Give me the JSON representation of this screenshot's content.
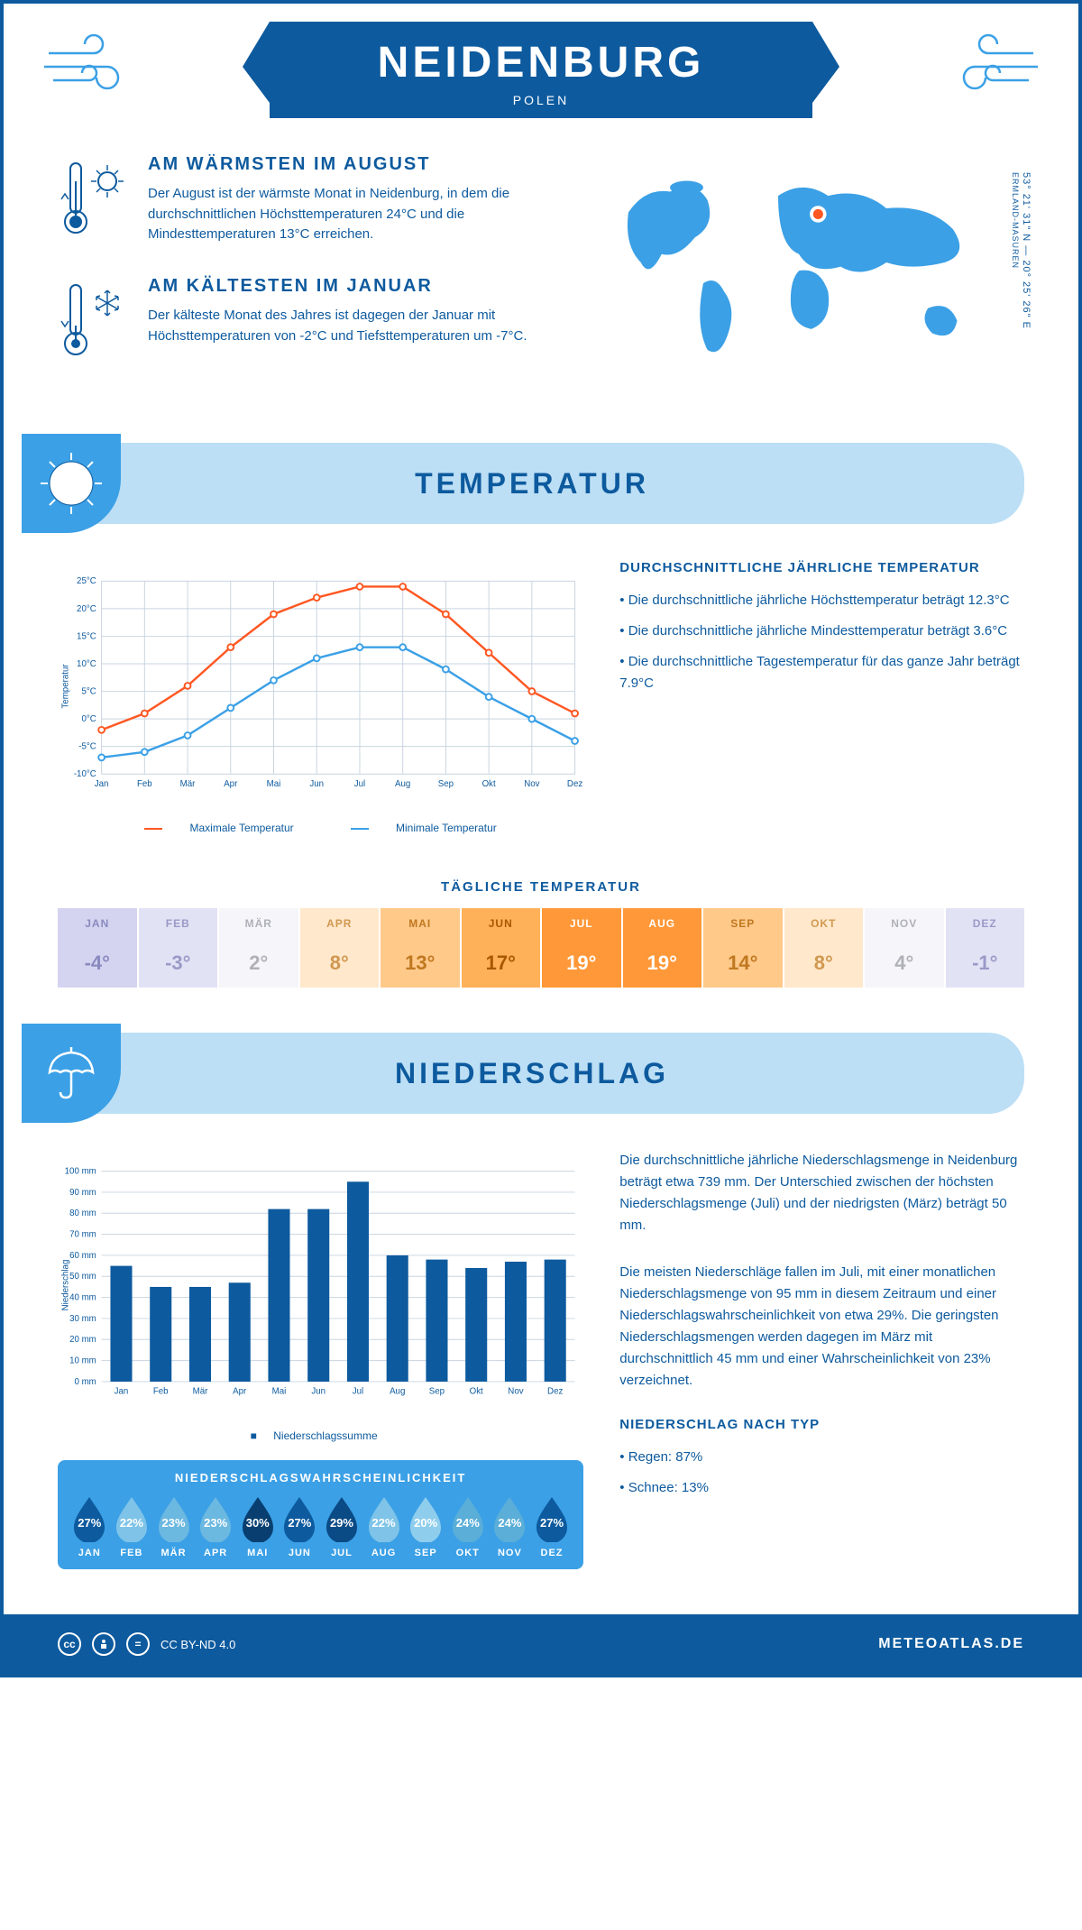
{
  "header": {
    "city": "NEIDENBURG",
    "country": "POLEN"
  },
  "coords_line": "53° 21' 31\" N — 20° 25' 26\" E",
  "region": "ERMLAND-MASUREN",
  "facts": {
    "warmest": {
      "title": "AM WÄRMSTEN IM AUGUST",
      "text": "Der August ist der wärmste Monat in Neidenburg, in dem die durchschnittlichen Höchsttemperaturen 24°C und die Mindesttemperaturen 13°C erreichen."
    },
    "coldest": {
      "title": "AM KÄLTESTEN IM JANUAR",
      "text": "Der kälteste Monat des Jahres ist dagegen der Januar mit Höchsttemperaturen von -2°C und Tiefsttemperaturen um -7°C."
    }
  },
  "temp_section": {
    "title": "TEMPERATUR",
    "chart": {
      "type": "line",
      "months": [
        "Jan",
        "Feb",
        "Mär",
        "Apr",
        "Mai",
        "Jun",
        "Jul",
        "Aug",
        "Sep",
        "Okt",
        "Nov",
        "Dez"
      ],
      "max_series": [
        -2,
        1,
        6,
        13,
        19,
        22,
        24,
        24,
        19,
        12,
        5,
        1
      ],
      "min_series": [
        -7,
        -6,
        -3,
        2,
        7,
        11,
        13,
        13,
        9,
        4,
        0,
        -4
      ],
      "max_color": "#ff5722",
      "min_color": "#3ba0e6",
      "grid_color": "#c8d4e0",
      "ylim": [
        -10,
        25
      ],
      "ytick_step": 5,
      "ylabel": "Temperatur",
      "legend_max": "Maximale Temperatur",
      "legend_min": "Minimale Temperatur"
    },
    "info": {
      "heading": "DURCHSCHNITTLICHE JÄHRLICHE TEMPERATUR",
      "bullet1": "• Die durchschnittliche jährliche Höchsttemperatur beträgt 12.3°C",
      "bullet2": "• Die durchschnittliche jährliche Mindesttemperatur beträgt 3.6°C",
      "bullet3": "• Die durchschnittliche Tagestemperatur für das ganze Jahr beträgt 7.9°C"
    },
    "daily": {
      "title": "TÄGLICHE TEMPERATUR",
      "months": [
        "JAN",
        "FEB",
        "MÄR",
        "APR",
        "MAI",
        "JUN",
        "JUL",
        "AUG",
        "SEP",
        "OKT",
        "NOV",
        "DEZ"
      ],
      "values": [
        "-4°",
        "-3°",
        "2°",
        "8°",
        "13°",
        "17°",
        "19°",
        "19°",
        "14°",
        "8°",
        "4°",
        "-1°"
      ],
      "colors": [
        "#d4d4f0",
        "#e2e2f5",
        "#f5f5fa",
        "#ffe8cc",
        "#ffc98a",
        "#ffb159",
        "#ff9838",
        "#ff9838",
        "#ffc98a",
        "#ffe8cc",
        "#f5f5fa",
        "#e2e2f5"
      ],
      "text_colors": [
        "#8a8ac0",
        "#9a9ac8",
        "#b0b0b8",
        "#d09850",
        "#c07820",
        "#a85800",
        "#fff",
        "#fff",
        "#c07820",
        "#d09850",
        "#b0b0b8",
        "#9a9ac8"
      ]
    }
  },
  "precip_section": {
    "title": "NIEDERSCHLAG",
    "chart": {
      "type": "bar",
      "months": [
        "Jan",
        "Feb",
        "Mär",
        "Apr",
        "Mai",
        "Jun",
        "Jul",
        "Aug",
        "Sep",
        "Okt",
        "Nov",
        "Dez"
      ],
      "values": [
        55,
        45,
        45,
        47,
        82,
        82,
        95,
        60,
        58,
        54,
        57,
        58
      ],
      "bar_color": "#0d5a9e",
      "grid_color": "#c8d4e0",
      "ylim": [
        0,
        100
      ],
      "ytick_step": 10,
      "ylabel": "Niederschlag",
      "legend": "Niederschlagssumme"
    },
    "info": {
      "para1": "Die durchschnittliche jährliche Niederschlagsmenge in Neidenburg beträgt etwa 739 mm. Der Unterschied zwischen der höchsten Niederschlagsmenge (Juli) und der niedrigsten (März) beträgt 50 mm.",
      "para2": "Die meisten Niederschläge fallen im Juli, mit einer monatlichen Niederschlagsmenge von 95 mm in diesem Zeitraum und einer Niederschlagswahrscheinlichkeit von etwa 29%. Die geringsten Niederschlagsmengen werden dagegen im März mit durchschnittlich 45 mm und einer Wahrscheinlichkeit von 23% verzeichnet.",
      "type_heading": "NIEDERSCHLAG NACH TYP",
      "type1": "• Regen: 87%",
      "type2": "• Schnee: 13%"
    },
    "probability": {
      "title": "NIEDERSCHLAGSWAHRSCHEINLICHKEIT",
      "months": [
        "JAN",
        "FEB",
        "MÄR",
        "APR",
        "MAI",
        "JUN",
        "JUL",
        "AUG",
        "SEP",
        "OKT",
        "NOV",
        "DEZ"
      ],
      "values": [
        "27%",
        "22%",
        "23%",
        "23%",
        "30%",
        "27%",
        "29%",
        "22%",
        "20%",
        "24%",
        "24%",
        "27%"
      ],
      "colors": [
        "#0d5a9e",
        "#7fc4e8",
        "#6bb8e0",
        "#6bb8e0",
        "#083f70",
        "#0d5a9e",
        "#0a4a85",
        "#7fc4e8",
        "#8fcded",
        "#5aaed8",
        "#5aaed8",
        "#0d5a9e"
      ]
    }
  },
  "footer": {
    "license": "CC BY-ND 4.0",
    "site": "METEOATLAS.DE"
  }
}
